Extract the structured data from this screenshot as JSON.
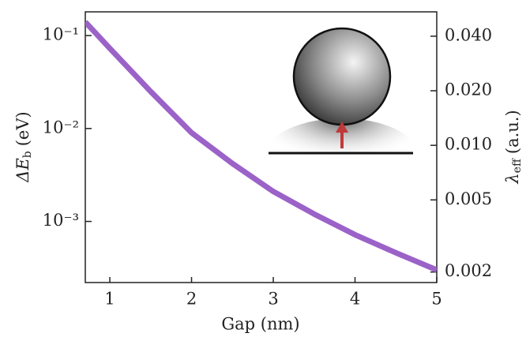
{
  "chart_data": {
    "type": "line",
    "xlabel": "Gap (nm)",
    "ylabel": {
      "main": "ΔE",
      "sub": "b",
      "unit": "(eV)"
    },
    "y2label": {
      "main": "λ",
      "sub": "eff",
      "unit": "(a.u.)"
    },
    "x": [
      0.7,
      1,
      1.5,
      2,
      2.5,
      3,
      3.5,
      4,
      4.5,
      5
    ],
    "values": [
      0.14,
      0.073,
      0.025,
      0.009,
      0.0042,
      0.0021,
      0.0012,
      0.00072,
      0.00046,
      0.0003
    ],
    "color": "#9b62c8",
    "xlim": [
      0.7,
      5
    ],
    "xticks": [
      1,
      2,
      3,
      4,
      5
    ],
    "ylim": [
      0.00022,
      0.18
    ],
    "yscale": "log",
    "yticks": [
      {
        "value": 0.001,
        "label": "10⁻³"
      },
      {
        "value": 0.01,
        "label": "10⁻²"
      },
      {
        "value": 0.1,
        "label": "10⁻¹"
      }
    ],
    "y2lim": [
      0.00175,
      0.0545
    ],
    "y2scale": "log",
    "y2ticks": [
      0.002,
      0.005,
      {
        "value": 0.01,
        "label": "0.010"
      },
      {
        "value": 0.02,
        "label": "0.020"
      },
      {
        "value": 0.04,
        "label": "0.040"
      }
    ]
  }
}
